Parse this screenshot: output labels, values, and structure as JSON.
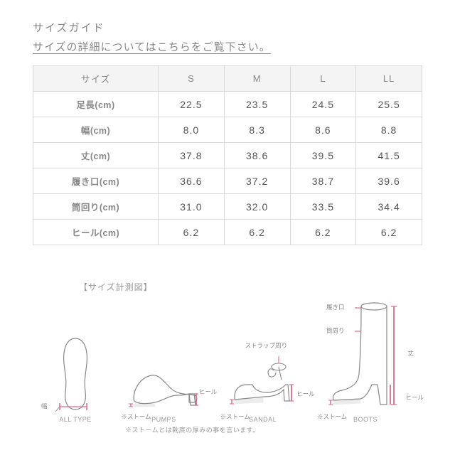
{
  "header": {
    "title": "サイズガイド",
    "link_text": "サイズの詳細についてはこちらをご覧下さい。"
  },
  "table": {
    "corner": "サイズ",
    "columns": [
      "S",
      "M",
      "L",
      "LL"
    ],
    "rows": [
      {
        "label": "足長(cm)",
        "values": [
          "22.5",
          "23.5",
          "24.5",
          "25.5"
        ]
      },
      {
        "label": "幅(cm)",
        "values": [
          "8.0",
          "8.3",
          "8.6",
          "8.8"
        ]
      },
      {
        "label": "丈(cm)",
        "values": [
          "37.8",
          "38.6",
          "39.5",
          "41.5"
        ]
      },
      {
        "label": "履き口(cm)",
        "values": [
          "36.6",
          "37.2",
          "38.7",
          "39.6"
        ]
      },
      {
        "label": "筒回り(cm)",
        "values": [
          "31.0",
          "32.0",
          "33.5",
          "34.4"
        ]
      },
      {
        "label": "ヒール(cm)",
        "values": [
          "6.2",
          "6.2",
          "6.2",
          "6.2"
        ]
      }
    ]
  },
  "diagram": {
    "title": "【サイズ計測図】",
    "shoes": [
      {
        "type_label": "ALL TYPE",
        "anno_width": "幅"
      },
      {
        "type_label": "PUMPS",
        "anno_heel": "ヒール",
        "anno_storm": "※ストーム"
      },
      {
        "type_label": "SANDAL",
        "anno_heel": "ヒール",
        "anno_storm": "※ストーム",
        "anno_strap": "ストラップ周り"
      },
      {
        "type_label": "BOOTS",
        "anno_heel": "ヒール",
        "anno_storm": "※ストーム",
        "anno_length": "丈",
        "anno_opening": "履き口",
        "anno_shaft": "筒周り"
      }
    ],
    "storm_note": "※ストームとは靴底の厚みの事を言います。",
    "colors": {
      "outline": "#888888",
      "accent": "#d96b8a",
      "text": "#888888"
    }
  }
}
